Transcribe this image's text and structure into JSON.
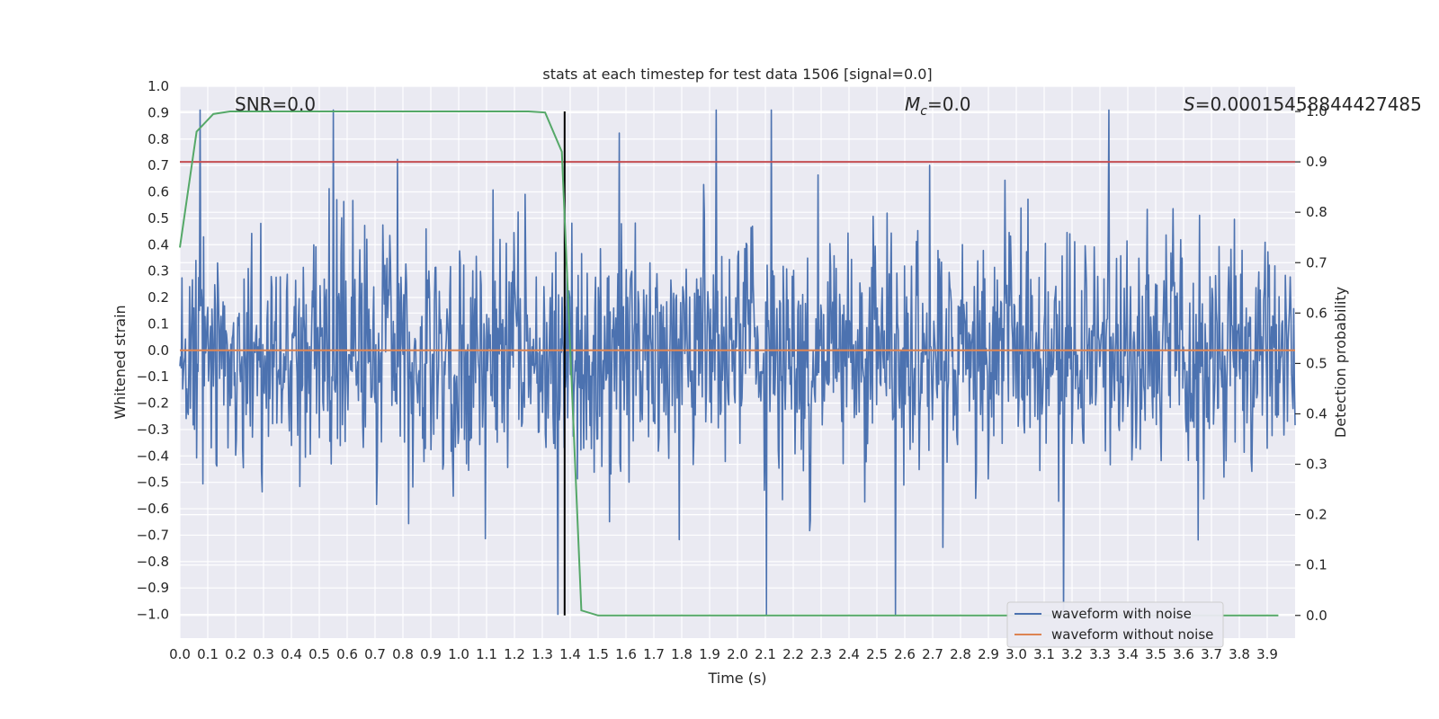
{
  "chart_data": {
    "type": "line",
    "title": "stats at each timestep for test data 1506 [signal=0.0]",
    "xlabel": "Time (s)",
    "ylabel": "Whitened strain",
    "y2label": "Detection probability",
    "xlim": [
      0.0,
      4.0
    ],
    "ylim": [
      -1.09,
      1.0
    ],
    "y2lim": [
      -0.045,
      1.05
    ],
    "x_ticks": [
      "0.0",
      "0.1",
      "0.2",
      "0.3",
      "0.4",
      "0.5",
      "0.6",
      "0.7",
      "0.8",
      "0.9",
      "1.0",
      "1.1",
      "1.2",
      "1.3",
      "1.4",
      "1.5",
      "1.6",
      "1.7",
      "1.8",
      "1.9",
      "2.0",
      "2.1",
      "2.2",
      "2.3",
      "2.4",
      "2.5",
      "2.6",
      "2.7",
      "2.8",
      "2.9",
      "3.0",
      "3.1",
      "3.2",
      "3.3",
      "3.4",
      "3.5",
      "3.6",
      "3.7",
      "3.8",
      "3.9"
    ],
    "y_ticks": [
      "−1.0",
      "−0.9",
      "−0.8",
      "−0.7",
      "−0.6",
      "−0.5",
      "−0.4",
      "−0.3",
      "−0.2",
      "−0.1",
      "0.0",
      "0.1",
      "0.2",
      "0.3",
      "0.4",
      "0.5",
      "0.6",
      "0.7",
      "0.8",
      "0.9",
      "1.0"
    ],
    "y2_ticks": [
      "0.0",
      "0.1",
      "0.2",
      "0.3",
      "0.4",
      "0.5",
      "0.6",
      "0.7",
      "0.8",
      "0.9",
      "1.0"
    ],
    "grid": true,
    "legend_position": "bottom-right",
    "annotations": {
      "snr": "SNR=0.0",
      "mc_symbol": "M",
      "mc_sub": "c",
      "mc_value": "=0.0",
      "s_symbol": "S",
      "s_value": "=0.00015458844427485"
    },
    "threshold_y2": 0.9,
    "marker_x": 1.38,
    "series": [
      {
        "name": "waveform with noise",
        "axis": "left",
        "color": "#4c72b0",
        "description": "whitened noisy strain, dense noise ranging roughly between -1.0 and 0.9",
        "x_range": [
          0.0,
          4.0
        ],
        "y_range": [
          -1.0,
          0.91
        ]
      },
      {
        "name": "waveform without noise",
        "axis": "left",
        "color": "#dd8452",
        "x": [
          0.0,
          4.0
        ],
        "y": [
          0.0,
          0.0
        ]
      },
      {
        "name": "",
        "axis": "right",
        "color": "#55a868",
        "x": [
          0.0,
          0.06,
          0.12,
          0.18,
          0.25,
          0.5,
          0.75,
          1.0,
          1.25,
          1.31,
          1.37,
          1.44,
          1.5,
          1.75,
          2.0,
          2.5,
          3.0,
          3.5,
          3.94
        ],
        "y": [
          0.73,
          0.96,
          0.995,
          1.0,
          1.0,
          1.0,
          1.0,
          1.0,
          1.0,
          0.998,
          0.92,
          0.01,
          0.0,
          0.0,
          0.0,
          0.0,
          0.0,
          0.0,
          0.0
        ]
      }
    ],
    "colors": {
      "threshold": "#c44e52",
      "marker": "#000000",
      "plot_bg": "#eaeaf2",
      "grid": "#ffffff"
    }
  }
}
